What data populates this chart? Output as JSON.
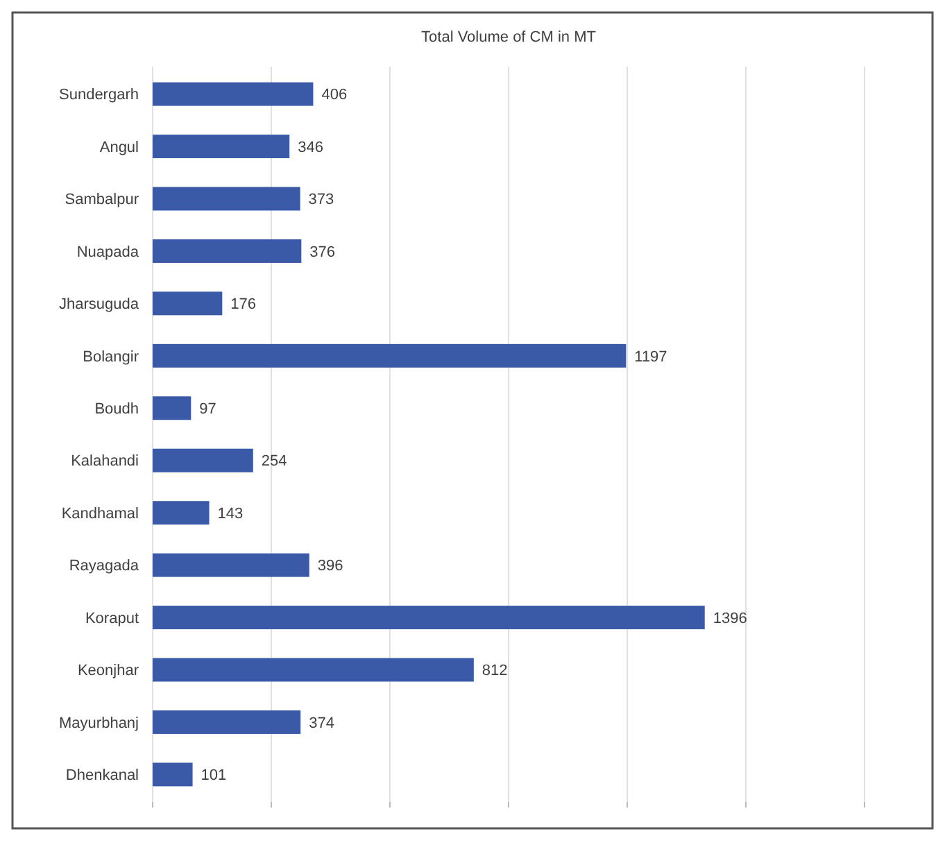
{
  "chart_data": {
    "type": "bar",
    "orientation": "horizontal",
    "title": "Total Volume of CM in MT",
    "categories": [
      "Sundergarh",
      "Angul",
      "Sambalpur",
      "Nuapada",
      "Jharsuguda",
      "Bolangir",
      "Boudh",
      "Kalahandi",
      "Kandhamal",
      "Rayagada",
      "Koraput",
      "Keonjhar",
      "Mayurbhanj",
      "Dhenkanal"
    ],
    "values": [
      406,
      346,
      373,
      376,
      176,
      1197,
      97,
      254,
      143,
      396,
      1396,
      812,
      374,
      101
    ],
    "color": "#3a5aa8",
    "data_labels": true,
    "grid": "x",
    "tick_labels": "y",
    "xlim": [
      0,
      1800
    ],
    "xticks": [
      {
        "value": 0,
        "label": null
      },
      {
        "value": 300,
        "label": null
      },
      {
        "value": 600,
        "label": null
      },
      {
        "value": 900,
        "label": null
      },
      {
        "value": 1200,
        "label": null
      },
      {
        "value": 1500,
        "label": null
      },
      {
        "value": 1800,
        "label": null
      }
    ]
  }
}
